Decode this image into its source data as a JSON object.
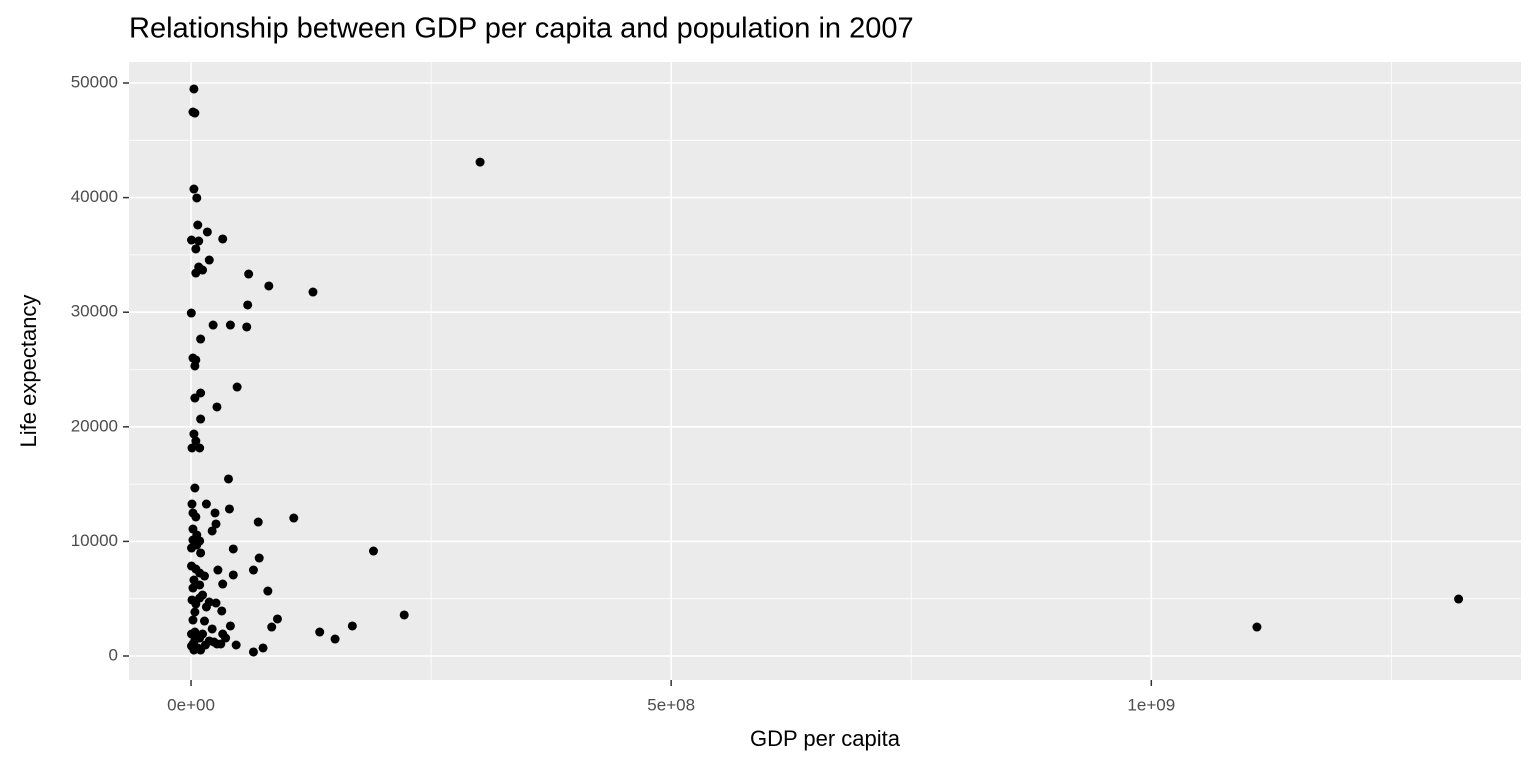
{
  "chart_data": {
    "type": "scatter",
    "title": "Relationship between GDP per capita and population in 2007",
    "x_label": "GDP per capita",
    "y_label": "Life expectancy",
    "color": "#000000",
    "grid": true,
    "xlim": [
      -64600000,
      1385000000
    ],
    "ylim": [
      -2094,
      51833
    ],
    "xticks": [
      {
        "value": 0,
        "label": "0e+00"
      },
      {
        "value": 500000000,
        "label": "5e+08"
      },
      {
        "value": 1000000000,
        "label": "1e+09"
      }
    ],
    "yticks": [
      0,
      10000,
      20000,
      30000,
      40000,
      50000
    ],
    "x": [
      3000000,
      2000000,
      4000000,
      301000000,
      3000000,
      6000000,
      7000000,
      17000000,
      500000,
      8000000,
      33000000,
      5000000,
      19000000,
      8000000,
      12000000,
      5000000,
      60000000,
      81000000,
      127000000,
      300000,
      59000000,
      23000000,
      41000000,
      58000000,
      10000000,
      2000000,
      5000000,
      4000000,
      48000000,
      10000000,
      4000000,
      27000000,
      10000000,
      3000000,
      5000000,
      1000000,
      9000000,
      39000000,
      4000000,
      1000000,
      16000000,
      40000000,
      2000000,
      25000000,
      5000000,
      107000000,
      70000000,
      26000000,
      2000000,
      22000000,
      6000000,
      2000000,
      9000000,
      6000000,
      500000,
      44000000,
      190000000,
      10000000,
      71000000,
      500000,
      5000000,
      28000000,
      65000000,
      9000000,
      14000000,
      44000000,
      3000000,
      9000000,
      2000000,
      33000000,
      80000000,
      12000000,
      9000000,
      1320000000,
      1000000,
      19000000,
      26000000,
      5000000,
      16000000,
      32000000,
      4000000,
      222000000,
      90000000,
      2000000,
      14000000,
      1110000000,
      168000000,
      84000000,
      41000000,
      22000000,
      134000000,
      4000000,
      12000000,
      33000000,
      500000,
      150000000,
      36000000,
      9000000,
      4000000,
      19000000,
      24000000,
      2000000,
      31000000,
      47000000,
      15000000,
      500000,
      75000000,
      7000000,
      3000000,
      65000000,
      10000000,
      27000000
    ],
    "values": [
      49480,
      47470,
      47380,
      43100,
      40750,
      39970,
      37610,
      37000,
      36300,
      36210,
      36390,
      35520,
      34550,
      33940,
      33680,
      33420,
      33330,
      32290,
      31760,
      29930,
      30630,
      28880,
      28880,
      28710,
      27660,
      26000,
      25830,
      25310,
      23470,
      22950,
      22510,
      21730,
      20680,
      19370,
      18760,
      18150,
      18150,
      15450,
      14660,
      13260,
      13260,
      12830,
      12480,
      12480,
      12130,
      12040,
      11690,
      11520,
      11080,
      10910,
      10560,
      10120,
      10040,
      9690,
      9420,
      9340,
      9160,
      8990,
      8550,
      7850,
      7590,
      7500,
      7500,
      7240,
      6980,
      7070,
      6630,
      6200,
      5930,
      6280,
      5670,
      5320,
      5060,
      4970,
      4890,
      4710,
      4620,
      4540,
      4280,
      3930,
      3840,
      3580,
      3230,
      3140,
      3050,
      2530,
      2620,
      2530,
      2620,
      2360,
      2090,
      2090,
      1920,
      1920,
      1920,
      1480,
      1570,
      1570,
      1400,
      1310,
      1220,
      1050,
      1050,
      960,
      960,
      870,
      700,
      700,
      520,
      350,
      520,
      1050
    ]
  }
}
